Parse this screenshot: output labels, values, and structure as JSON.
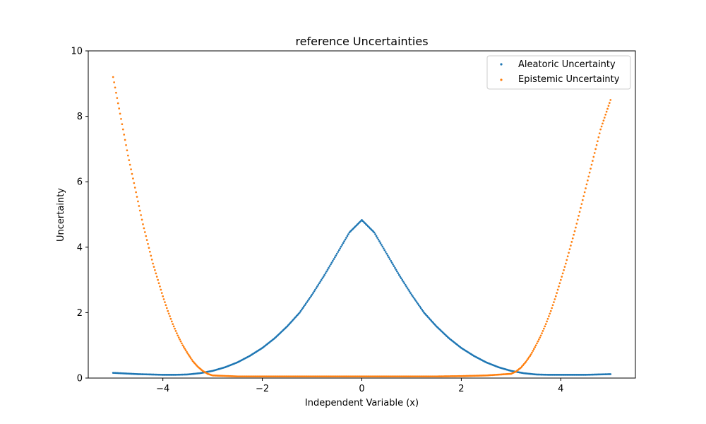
{
  "chart_data": {
    "type": "scatter",
    "title": "reference Uncertainties",
    "xlabel": "Independent Variable (x)",
    "ylabel": "Uncertainty",
    "xlim": [
      -5.5,
      5.5
    ],
    "ylim": [
      0,
      10
    ],
    "x_ticks": [
      -4,
      -2,
      0,
      2,
      4
    ],
    "x_tick_labels": [
      "−4",
      "−2",
      "0",
      "2",
      "4"
    ],
    "y_ticks": [
      0,
      2,
      4,
      6,
      8,
      10
    ],
    "y_tick_labels": [
      "0",
      "2",
      "4",
      "6",
      "8",
      "10"
    ],
    "grid": false,
    "legend_position": "top-right",
    "series": [
      {
        "name": "Aleatoric Uncertainty",
        "color": "#1f77b4",
        "x": [
          -5.0,
          -4.75,
          -4.5,
          -4.25,
          -4.0,
          -3.75,
          -3.5,
          -3.25,
          -3.0,
          -2.75,
          -2.5,
          -2.25,
          -2.0,
          -1.75,
          -1.5,
          -1.25,
          -1.0,
          -0.75,
          -0.5,
          -0.25,
          0.0,
          0.25,
          0.5,
          0.75,
          1.0,
          1.25,
          1.5,
          1.75,
          2.0,
          2.25,
          2.5,
          2.75,
          3.0,
          3.25,
          3.5,
          3.75,
          4.0,
          4.25,
          4.5,
          4.75,
          5.0
        ],
        "y": [
          0.16,
          0.14,
          0.12,
          0.11,
          0.1,
          0.1,
          0.11,
          0.15,
          0.22,
          0.33,
          0.48,
          0.68,
          0.92,
          1.22,
          1.58,
          2.0,
          2.55,
          3.15,
          3.8,
          4.45,
          4.83,
          4.45,
          3.8,
          3.15,
          2.55,
          2.0,
          1.58,
          1.22,
          0.92,
          0.68,
          0.48,
          0.33,
          0.22,
          0.15,
          0.11,
          0.1,
          0.1,
          0.1,
          0.1,
          0.11,
          0.12
        ]
      },
      {
        "name": "Epistemic Uncertainty",
        "color": "#ff7f0e",
        "x": [
          -5.0,
          -4.9,
          -4.8,
          -4.7,
          -4.6,
          -4.5,
          -4.4,
          -4.3,
          -4.2,
          -4.1,
          -4.0,
          -3.9,
          -3.8,
          -3.7,
          -3.6,
          -3.5,
          -3.4,
          -3.3,
          -3.2,
          -3.1,
          -3.0,
          -2.5,
          -2.0,
          -1.5,
          -1.0,
          -0.5,
          0.0,
          0.5,
          1.0,
          1.5,
          2.0,
          2.5,
          3.0,
          3.1,
          3.2,
          3.3,
          3.4,
          3.5,
          3.6,
          3.7,
          3.8,
          3.9,
          4.0,
          4.1,
          4.2,
          4.3,
          4.4,
          4.5,
          4.6,
          4.7,
          4.8,
          4.9,
          5.0
        ],
        "y": [
          9.2,
          8.4,
          7.6,
          6.8,
          6.1,
          5.4,
          4.7,
          4.1,
          3.5,
          3.0,
          2.5,
          2.05,
          1.65,
          1.3,
          1.0,
          0.75,
          0.52,
          0.35,
          0.22,
          0.13,
          0.08,
          0.05,
          0.05,
          0.05,
          0.05,
          0.05,
          0.05,
          0.05,
          0.05,
          0.05,
          0.06,
          0.08,
          0.13,
          0.2,
          0.32,
          0.5,
          0.72,
          1.0,
          1.3,
          1.65,
          2.05,
          2.5,
          3.0,
          3.5,
          4.05,
          4.6,
          5.2,
          5.8,
          6.4,
          7.0,
          7.6,
          8.05,
          8.5
        ]
      }
    ]
  }
}
